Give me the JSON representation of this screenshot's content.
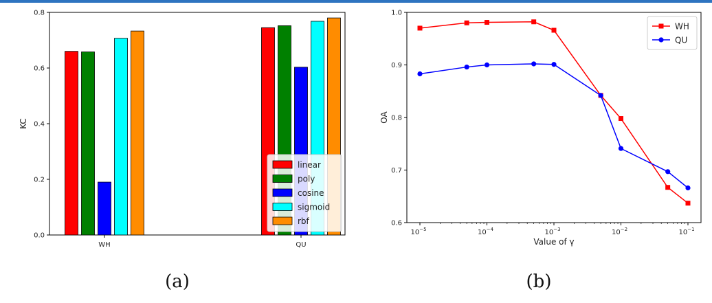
{
  "colors": {
    "linear": "#ff0000",
    "poly": "#008000",
    "cosine": "#0000ff",
    "sigmoid": "#00ffff",
    "rbf": "#ff8c00",
    "WH": "#ff0000",
    "QU": "#0000ff",
    "accent_bar": "#2e74c0"
  },
  "chart_data": [
    {
      "type": "bar",
      "caption": "(a)",
      "ylabel": "KC",
      "xlabel": "",
      "ylim": [
        0,
        0.8
      ],
      "yticks": [
        "0.0",
        "0.2",
        "0.4",
        "0.6",
        "0.8"
      ],
      "categories": [
        "WH",
        "QU"
      ],
      "legend_position": "bottom-right",
      "series": [
        {
          "name": "linear",
          "values": [
            0.66,
            0.745
          ]
        },
        {
          "name": "poly",
          "values": [
            0.658,
            0.752
          ]
        },
        {
          "name": "cosine",
          "values": [
            0.19,
            0.603
          ]
        },
        {
          "name": "sigmoid",
          "values": [
            0.707,
            0.768
          ]
        },
        {
          "name": "rbf",
          "values": [
            0.733,
            0.78
          ]
        }
      ]
    },
    {
      "type": "line",
      "caption": "(b)",
      "ylabel": "OA",
      "xlabel": "Value of γ",
      "xscale": "log",
      "ylim": [
        0.6,
        1.0
      ],
      "yticks": [
        "0.6",
        "0.7",
        "0.8",
        "0.9",
        "1.0"
      ],
      "xticks": [
        {
          "value": 1e-05,
          "base": "10",
          "exp": "−5"
        },
        {
          "value": 0.0001,
          "base": "10",
          "exp": "−4"
        },
        {
          "value": 0.001,
          "base": "10",
          "exp": "−3"
        },
        {
          "value": 0.01,
          "base": "10",
          "exp": "−2"
        },
        {
          "value": 0.1,
          "base": "10",
          "exp": "−1"
        }
      ],
      "x": [
        1e-05,
        5e-05,
        0.0001,
        0.0005,
        0.001,
        0.005,
        0.01,
        0.05,
        0.1
      ],
      "legend_position": "top-right",
      "series": [
        {
          "name": "WH",
          "marker": "square",
          "values": [
            0.97,
            0.98,
            0.981,
            0.982,
            0.966,
            0.842,
            0.798,
            0.667,
            0.637
          ]
        },
        {
          "name": "QU",
          "marker": "circle",
          "values": [
            0.883,
            0.896,
            0.9,
            0.902,
            0.901,
            0.842,
            0.741,
            0.697,
            0.666
          ]
        }
      ]
    }
  ]
}
